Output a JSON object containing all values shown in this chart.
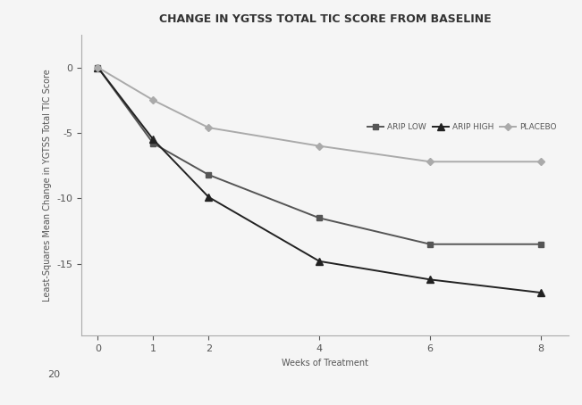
{
  "title": "CHANGE IN YGTSS TOTAL TIC SCORE FROM BASELINE",
  "xlabel": "Weeks of Treatment",
  "ylabel": "Least-Squares Mean Change in YGTSS Total TIC Score",
  "weeks": [
    0,
    1,
    2,
    4,
    6,
    8
  ],
  "arip_low": [
    0,
    -5.8,
    -8.2,
    -11.5,
    -13.5,
    -13.5
  ],
  "arip_high": [
    0,
    -5.5,
    -9.9,
    -14.8,
    -16.2,
    -17.2
  ],
  "placebo": [
    0,
    -2.5,
    -4.6,
    -6.0,
    -7.2,
    -7.2
  ],
  "arip_low_color": "#555555",
  "arip_high_color": "#222222",
  "placebo_color": "#aaaaaa",
  "background_color": "#f5f5f5",
  "xticks": [
    0,
    1,
    2,
    4,
    6,
    8
  ],
  "legend_labels": [
    "ARIP LOW",
    "ARIP HIGH",
    "PLACEBO"
  ],
  "title_fontsize": 9,
  "label_fontsize": 7,
  "tick_fontsize": 8
}
